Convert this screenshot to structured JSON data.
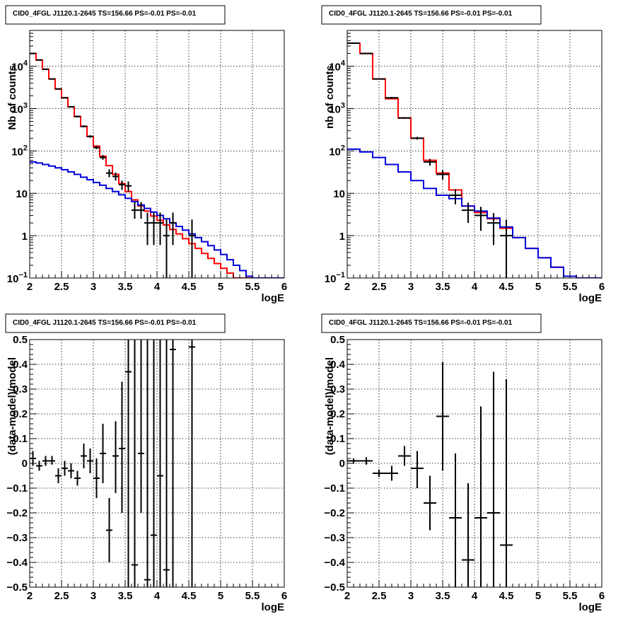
{
  "chart_data": [
    {
      "type": "line",
      "title": "CID0_4FGL J1120.1-2645 TS=156.66 PS=-0.01 PS=-0.01",
      "xlabel": "logE",
      "ylabel": "Nb of counts",
      "xlim": [
        2,
        6
      ],
      "ylim": [
        0.1,
        70000
      ],
      "yscale": "log",
      "grid": true,
      "xticks": [
        "2",
        "2.5",
        "3",
        "3.5",
        "4",
        "4.5",
        "5",
        "5.5",
        "6"
      ],
      "yticks": [
        {
          "value": 0.1,
          "label": "10",
          "exp": "−1"
        },
        {
          "value": 1,
          "label": "1",
          "exp": ""
        },
        {
          "value": 10,
          "label": "10",
          "exp": ""
        },
        {
          "value": 100,
          "label": "10",
          "exp": "2"
        },
        {
          "value": 1000,
          "label": "10",
          "exp": "3"
        },
        {
          "value": 10000,
          "label": "10",
          "exp": "4"
        }
      ],
      "bin_edges": [
        2.0,
        2.1,
        2.2,
        2.3,
        2.4,
        2.5,
        2.6,
        2.7,
        2.8,
        2.9,
        3.0,
        3.1,
        3.2,
        3.3,
        3.4,
        3.5,
        3.6,
        3.7,
        3.8,
        3.9,
        4.0,
        4.1,
        4.2,
        4.3,
        4.4,
        4.5,
        4.6,
        4.7,
        4.8,
        4.9,
        5.0,
        5.1,
        5.2,
        5.3,
        5.4,
        5.5,
        5.6,
        5.7,
        5.8,
        5.9,
        6.0
      ],
      "series": [
        {
          "kind": "step",
          "color": "#ff0000",
          "values": [
            20000,
            14000,
            8500,
            5000,
            2900,
            1800,
            1100,
            650,
            380,
            220,
            130,
            75,
            45,
            28,
            17,
            11,
            7,
            5,
            3.8,
            2.9,
            2.3,
            1.8,
            1.4,
            1.1,
            0.85,
            0.65,
            0.5,
            0.38,
            0.29,
            0.22,
            0.17,
            0.13,
            0.1,
            0.1,
            0.1,
            0.1,
            0.1,
            0.1,
            0.1,
            0.1
          ]
        },
        {
          "kind": "step",
          "color": "#0000dd",
          "values": [
            55,
            52,
            48,
            44,
            40,
            36,
            32,
            28,
            24,
            21,
            18,
            15.5,
            13,
            11,
            9.2,
            7.6,
            6.4,
            5.3,
            4.4,
            3.6,
            3,
            2.5,
            2,
            1.65,
            1.35,
            1.1,
            0.9,
            0.72,
            0.58,
            0.46,
            0.36,
            0.27,
            0.2,
            0.15,
            0.11,
            0.1,
            0.1,
            0.1,
            0.1,
            0.1
          ]
        },
        {
          "kind": "errorbar",
          "color": "#000000",
          "x": [
            2.05,
            2.15,
            2.25,
            2.35,
            2.45,
            2.55,
            2.65,
            2.75,
            2.85,
            2.95,
            3.05,
            3.15,
            3.25,
            3.35,
            3.45,
            3.55,
            3.65,
            3.75,
            3.85,
            3.95,
            4.05,
            4.15,
            4.25,
            4.55
          ],
          "y": [
            20000,
            14000,
            8500,
            5000,
            2900,
            1800,
            1100,
            650,
            380,
            220,
            120,
            70,
            30,
            25,
            16,
            15,
            4,
            4,
            2,
            2,
            2,
            1,
            2,
            1
          ],
          "ylo": [
            19700,
            13800,
            8350,
            4900,
            2850,
            1750,
            1070,
            620,
            360,
            205,
            110,
            62,
            24,
            20,
            12,
            11,
            2.5,
            2.5,
            0.6,
            0.6,
            0.6,
            0.1,
            0.6,
            0.1
          ],
          "yhi": [
            20300,
            14200,
            8650,
            5100,
            2950,
            1850,
            1130,
            680,
            400,
            235,
            132,
            80,
            37,
            31,
            20,
            19,
            6.2,
            6.2,
            3.5,
            3.5,
            3.5,
            2.4,
            3.5,
            2.4
          ]
        }
      ]
    },
    {
      "type": "line",
      "title": "CID0_4FGL J1120.1-2645 TS=156.66 PS=-0.01 PS=-0.01",
      "xlabel": "logE",
      "ylabel": "nb of counts",
      "xlim": [
        2,
        6
      ],
      "ylim": [
        0.1,
        70000
      ],
      "yscale": "log",
      "grid": true,
      "xticks": [
        "2",
        "2.5",
        "3",
        "3.5",
        "4",
        "4.5",
        "5",
        "5.5",
        "6"
      ],
      "yticks": [
        {
          "value": 0.1,
          "label": "10",
          "exp": "−1"
        },
        {
          "value": 1,
          "label": "1",
          "exp": ""
        },
        {
          "value": 10,
          "label": "10",
          "exp": ""
        },
        {
          "value": 100,
          "label": "10",
          "exp": "2"
        },
        {
          "value": 1000,
          "label": "10",
          "exp": "3"
        },
        {
          "value": 10000,
          "label": "10",
          "exp": "4"
        }
      ],
      "bin_edges": [
        2.0,
        2.2,
        2.4,
        2.6,
        2.8,
        3.0,
        3.2,
        3.4,
        3.6,
        3.8,
        4.0,
        4.2,
        4.4,
        4.6,
        4.8,
        5.0,
        5.2,
        5.4,
        5.6,
        5.8,
        6.0
      ],
      "series": [
        {
          "kind": "step",
          "color": "#ff0000",
          "values": [
            35000,
            20000,
            5000,
            1700,
            600,
            200,
            60,
            30,
            12,
            5,
            3.5,
            2.5,
            1.5,
            0.9,
            0.5,
            0.3,
            0.18,
            0.11,
            0.1,
            0.1
          ]
        },
        {
          "kind": "step",
          "color": "#0000dd",
          "values": [
            110,
            95,
            70,
            48,
            32,
            20,
            13,
            9,
            7.5,
            5,
            3.8,
            2.6,
            1.6,
            0.9,
            0.5,
            0.3,
            0.18,
            0.11,
            0.1,
            0.1
          ]
        },
        {
          "kind": "errorbar",
          "color": "#000000",
          "x": [
            2.1,
            2.3,
            2.5,
            2.7,
            2.9,
            3.1,
            3.3,
            3.5,
            3.7,
            3.9,
            4.1,
            4.3,
            4.5
          ],
          "y": [
            35000,
            20000,
            5000,
            1800,
            600,
            200,
            55,
            28,
            9,
            4,
            3,
            2,
            1
          ],
          "ylo": [
            34600,
            19700,
            4850,
            1720,
            575,
            185,
            45,
            21,
            5.5,
            2,
            1.3,
            0.6,
            0.1
          ],
          "yhi": [
            35400,
            20300,
            5150,
            1880,
            625,
            215,
            65,
            35,
            12.5,
            6,
            4.8,
            3.4,
            2.4
          ]
        }
      ]
    },
    {
      "type": "scatter",
      "title": "CID0_4FGL J1120.1-2645 TS=156.66 PS=-0.01 PS=-0.01",
      "xlabel": "logE",
      "ylabel": "(data-model)/model",
      "xlim": [
        2,
        6
      ],
      "ylim": [
        -0.5,
        0.5
      ],
      "grid": true,
      "xticks": [
        "2",
        "2.5",
        "3",
        "3.5",
        "4",
        "4.5",
        "5",
        "5.5",
        "6"
      ],
      "yticks": [
        "−0.5",
        "−0.4",
        "−0.3",
        "−0.2",
        "−0.1",
        "0",
        "0.1",
        "0.2",
        "0.3",
        "0.4",
        "0.5"
      ],
      "series": [
        {
          "kind": "errorbar",
          "color": "#000000",
          "xhalf": 0.05,
          "x": [
            2.05,
            2.15,
            2.25,
            2.35,
            2.45,
            2.55,
            2.65,
            2.75,
            2.85,
            2.95,
            3.05,
            3.15,
            3.25,
            3.35,
            3.45,
            3.55,
            3.65,
            3.75,
            3.85,
            3.95,
            4.05,
            4.15,
            4.25,
            4.55
          ],
          "y": [
            0.02,
            -0.01,
            0.01,
            0.01,
            -0.05,
            -0.02,
            -0.03,
            -0.06,
            0.03,
            0.01,
            -0.06,
            0.04,
            -0.27,
            0.03,
            0.06,
            0.37,
            -0.41,
            0.04,
            -0.47,
            -0.29,
            -0.05,
            -0.43,
            0.46,
            0.47
          ],
          "ylo": [
            -0.01,
            -0.03,
            -0.01,
            -0.005,
            -0.08,
            -0.05,
            -0.06,
            -0.09,
            -0.02,
            -0.04,
            -0.14,
            -0.08,
            -0.4,
            -0.12,
            -0.2,
            -0.5,
            -0.5,
            -0.2,
            -0.5,
            -0.5,
            -0.5,
            -0.5,
            -0.5,
            -0.5
          ],
          "yhi": [
            0.05,
            0.01,
            0.03,
            0.03,
            -0.02,
            0.01,
            0.0,
            -0.03,
            0.08,
            0.06,
            0.02,
            0.16,
            -0.14,
            0.17,
            0.33,
            0.5,
            0.5,
            0.5,
            0.5,
            0.5,
            0.5,
            0.5,
            0.5,
            0.5
          ]
        }
      ]
    },
    {
      "type": "scatter",
      "title": "CID0_4FGL J1120.1-2645 TS=156.66 PS=-0.01 PS=-0.01",
      "xlabel": "logE",
      "ylabel": "(data-model)/model",
      "xlim": [
        2,
        6
      ],
      "ylim": [
        -0.5,
        0.5
      ],
      "grid": true,
      "xticks": [
        "2",
        "2.5",
        "3",
        "3.5",
        "4",
        "4.5",
        "5",
        "5.5",
        "6"
      ],
      "yticks": [
        "−0.5",
        "−0.4",
        "−0.3",
        "−0.2",
        "−0.1",
        "0",
        "0.1",
        "0.2",
        "0.3",
        "0.4",
        "0.5"
      ],
      "series": [
        {
          "kind": "errorbar",
          "color": "#000000",
          "xhalf": 0.1,
          "x": [
            2.1,
            2.3,
            2.5,
            2.7,
            2.9,
            3.1,
            3.3,
            3.5,
            3.7,
            3.9,
            4.1,
            4.3,
            4.5
          ],
          "y": [
            0.01,
            0.01,
            -0.04,
            -0.04,
            0.03,
            -0.02,
            -0.16,
            0.19,
            -0.22,
            -0.39,
            -0.22,
            -0.2,
            -0.33
          ],
          "ylo": [
            0.0,
            -0.005,
            -0.055,
            -0.07,
            -0.01,
            -0.1,
            -0.27,
            -0.03,
            -0.5,
            -0.5,
            -0.5,
            -0.5,
            -0.5
          ],
          "yhi": [
            0.02,
            0.025,
            -0.025,
            -0.01,
            0.07,
            0.05,
            -0.05,
            0.41,
            0.04,
            -0.08,
            0.23,
            0.37,
            0.34
          ]
        }
      ]
    }
  ]
}
